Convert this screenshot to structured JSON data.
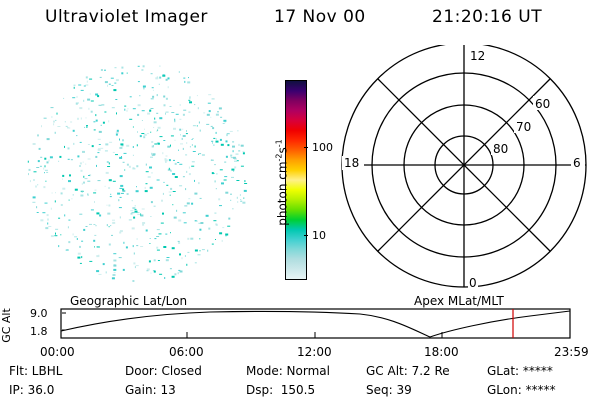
{
  "header": {
    "instrument": "Ultraviolet Imager",
    "date": "17 Nov 00",
    "time": "21:20:16 UT"
  },
  "colorbar": {
    "unit": "photon cm",
    "unit_exp": "-2",
    "unit_s": "s",
    "unit_s_exp": "-1",
    "tick_100": "100",
    "tick_10": "10",
    "colors": [
      "#e8f4f4",
      "#cce8ea",
      "#b0dee0",
      "#7fd8d8",
      "#3fd0d0",
      "#00c8b0",
      "#00d030",
      "#66e000",
      "#b4f000",
      "#f0ff00",
      "#fff08a",
      "#ffd000",
      "#ffa000",
      "#ff6000",
      "#ff2800",
      "#f00000",
      "#d8003a",
      "#b00060",
      "#800060",
      "#3a0070",
      "#101040"
    ]
  },
  "polar_plot": {
    "mlt_12": "12",
    "mlt_18": "18",
    "mlt_6": "6",
    "mlt_0": "0",
    "mlat_60": "60",
    "mlat_70": "70",
    "mlat_80": "80"
  },
  "timeline": {
    "left_label": "Geographic Lat/Lon",
    "right_label": "Apex MLat/MLT",
    "y_axis_label": "GC Alt",
    "y_top": "9.0",
    "y_bottom": "1.8",
    "x_ticks": [
      "00:00",
      "06:00",
      "12:00",
      "18:00",
      "23:59"
    ],
    "current_time_marker_color": "#d00000"
  },
  "info": {
    "flt": "Flt: LBHL",
    "door": "Door: Closed",
    "mode": "Mode: Normal",
    "gc_alt": "GC Alt: 7.2 Re",
    "glat": "GLat: *****",
    "ip": "IP: 36.0",
    "gain": "Gain: 13",
    "dsp": "Dsp:  150.5",
    "seq": "Seq: 39",
    "glon": "GLon: *****"
  }
}
